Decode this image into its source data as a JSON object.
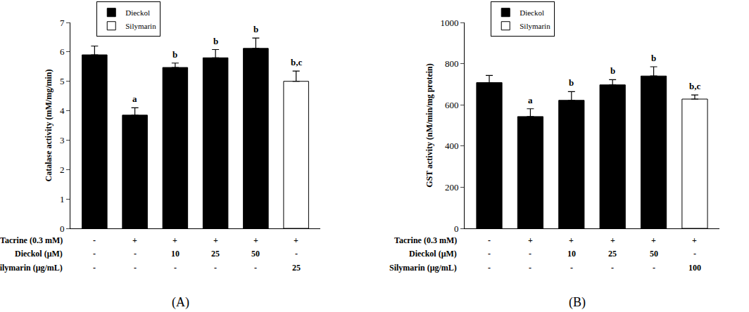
{
  "chart_data": [
    {
      "type": "bar",
      "panel_label": "(A)",
      "y_label": "Catalase activity (mM/mg/min)",
      "categories": [
        null,
        null,
        null,
        null,
        null,
        null
      ],
      "series": [
        {
          "name": "Dieckol",
          "color": "#000000",
          "values": [
            5.9,
            3.85,
            5.47,
            5.8,
            6.12,
            null
          ],
          "errors": [
            0.3,
            0.25,
            0.15,
            0.28,
            0.35,
            null
          ]
        },
        {
          "name": "Silymarin",
          "color": "#ffffff",
          "values": [
            null,
            null,
            null,
            null,
            null,
            5.0
          ],
          "errors": [
            null,
            null,
            null,
            null,
            null,
            0.35
          ]
        }
      ],
      "bar_letters": [
        null,
        "a",
        "b",
        "b",
        "b",
        "b,c"
      ],
      "x_table": [
        {
          "label": "Tacrine (0.3 mM)",
          "cells": [
            "-",
            "+",
            "+",
            "+",
            "+",
            "+"
          ]
        },
        {
          "label": "Dieckol (μM)",
          "cells": [
            "-",
            "-",
            "10",
            "25",
            "50",
            "-"
          ]
        },
        {
          "label": "Silymarin (μg/mL)",
          "cells": [
            "-",
            "-",
            "-",
            "-",
            "-",
            "25"
          ]
        }
      ],
      "ylim": [
        0,
        7
      ],
      "yticks": [
        0,
        1,
        2,
        3,
        4,
        5,
        6,
        7
      ],
      "legend": "upper left"
    },
    {
      "type": "bar",
      "panel_label": "(B)",
      "y_label": "GST activity (nM/min/mg protein)",
      "categories": [
        null,
        null,
        null,
        null,
        null,
        null
      ],
      "series": [
        {
          "name": "Dieckol",
          "color": "#000000",
          "values": [
            708,
            543,
            622,
            697,
            740,
            null
          ],
          "errors": [
            35,
            38,
            42,
            25,
            45,
            null
          ]
        },
        {
          "name": "Silymarin",
          "color": "#ffffff",
          "values": [
            null,
            null,
            null,
            null,
            null,
            628
          ],
          "errors": [
            null,
            null,
            null,
            null,
            null,
            20
          ]
        }
      ],
      "bar_letters": [
        null,
        "a",
        "b",
        "b",
        "b",
        "b,c"
      ],
      "x_table": [
        {
          "label": "Tacrine (0.3 mM)",
          "cells": [
            "-",
            "+",
            "+",
            "+",
            "+",
            "+"
          ]
        },
        {
          "label": "Dieckol (μM)",
          "cells": [
            "-",
            "-",
            "10",
            "25",
            "50",
            "-"
          ]
        },
        {
          "label": "Silymarin (μg/mL)",
          "cells": [
            "-",
            "-",
            "-",
            "-",
            "-",
            "100"
          ]
        }
      ],
      "ylim": [
        0,
        1000
      ],
      "yticks": [
        0,
        200,
        400,
        600,
        800,
        1000
      ],
      "legend": "upper left"
    }
  ]
}
